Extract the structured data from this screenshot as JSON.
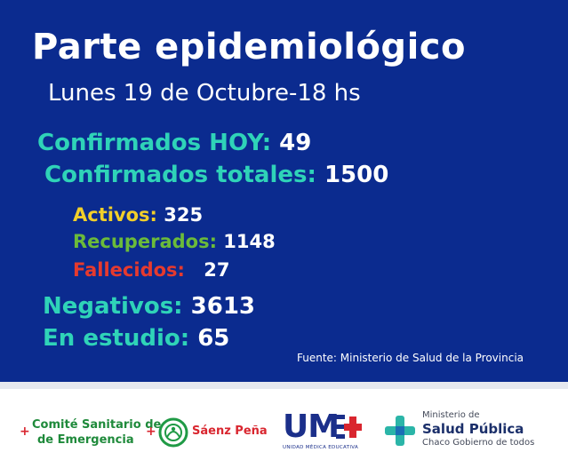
{
  "header": {
    "title": "Parte epidemiológico",
    "date_line": "Lunes  19 de Octubre-18 hs"
  },
  "stats": {
    "confirmados_hoy": {
      "label": "Confirmados HOY:",
      "value": "49"
    },
    "confirmados_totales": {
      "label": "Confirmados totales:",
      "value": "1500"
    },
    "activos": {
      "label": "Activos:",
      "value": "325"
    },
    "recuperados": {
      "label": "Recuperados:",
      "value": "1148"
    },
    "fallecidos": {
      "label": "Fallecidos:",
      "value": "27"
    },
    "negativos": {
      "label": "Negativos:",
      "value": "3613"
    },
    "en_estudio": {
      "label": "En estudio:",
      "value": "65"
    }
  },
  "source": "Fuente: Ministerio de Salud de la Provincia",
  "footer": {
    "comite": {
      "line1": "Comité Sanitario de",
      "line2": "de Emergencia",
      "cross": "+"
    },
    "saenz_pena": {
      "name": "Sáenz Peña"
    },
    "ume": {
      "letters": "UM",
      "sub": "UNIDAD MÉDICA EDUCATIVA"
    },
    "salud": {
      "line1": "Ministerio de",
      "line2": "Salud Pública",
      "line3": "Chaco Gobierno de todos"
    }
  },
  "colors": {
    "background": "#0b2b8f",
    "teal": "#2fd3b8",
    "yellow": "#f1cf2a",
    "green": "#6bbb3a",
    "red": "#e63a2e"
  }
}
